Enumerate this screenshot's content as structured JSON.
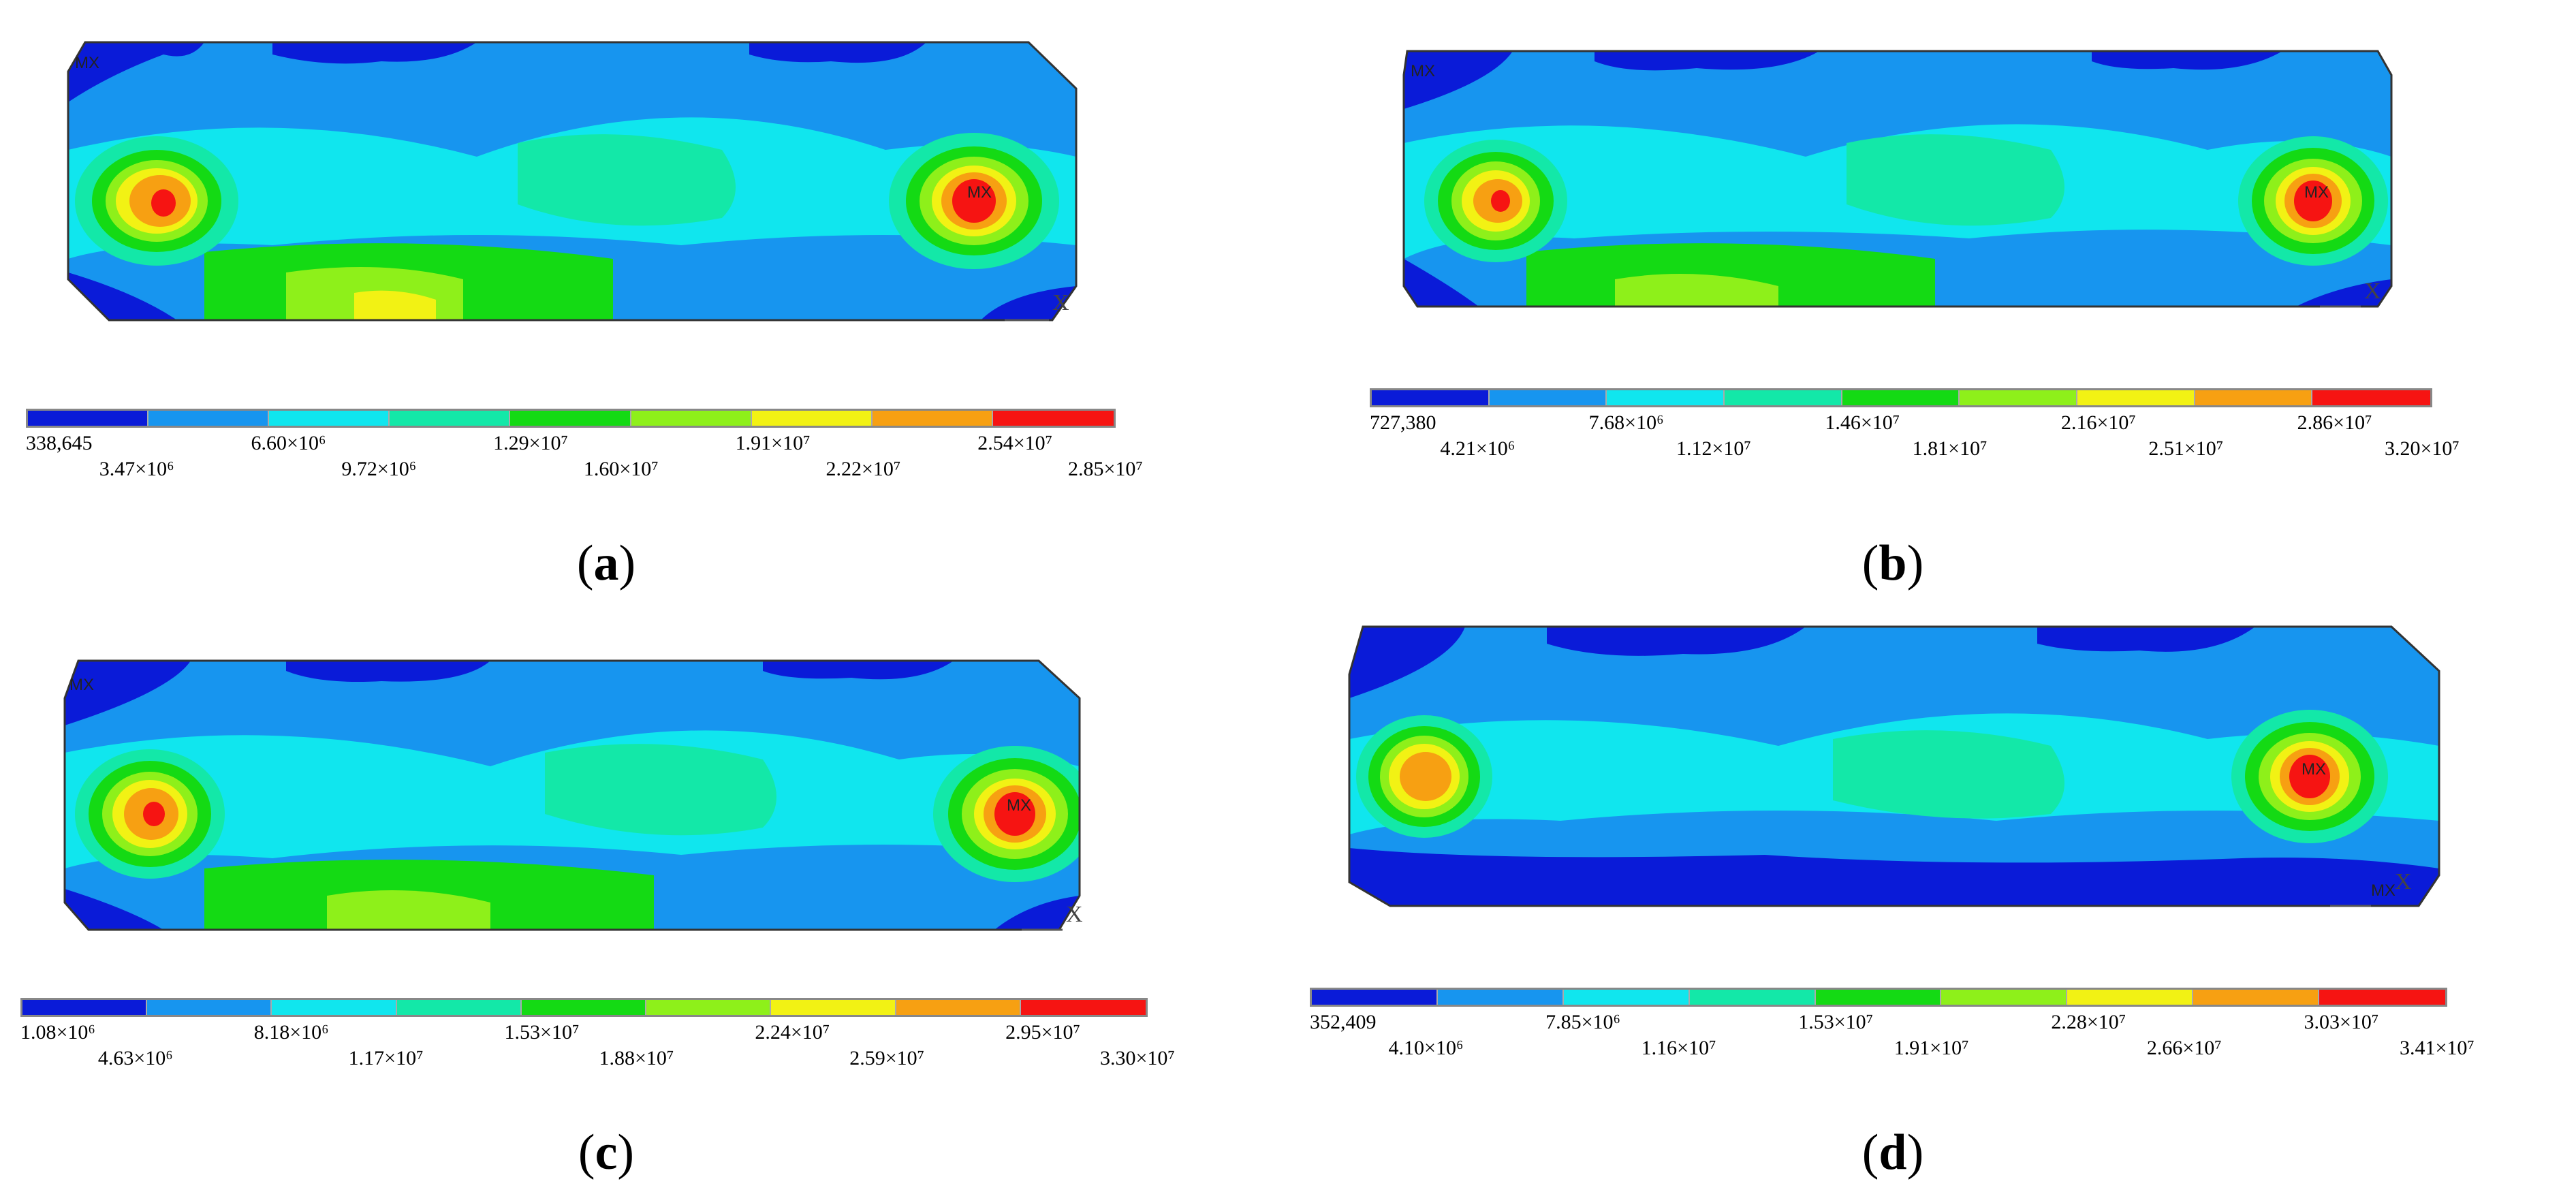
{
  "colors": [
    "#0a1bd8",
    "#1795ef",
    "#10e6ee",
    "#13e8a8",
    "#14da14",
    "#8ef01a",
    "#f2f214",
    "#f7a012",
    "#f61412"
  ],
  "panels": [
    {
      "id": "a",
      "label": "a",
      "legend_top": [
        "338,645",
        "6.60×10⁶",
        "1.29×10⁷",
        "1.91×10⁷",
        "2.54×10⁷"
      ],
      "legend_bottom": [
        "3.47×10⁶",
        "9.72×10⁶",
        "1.60×10⁷",
        "2.22×10⁷",
        "2.85×10⁷"
      ],
      "marker": "MX",
      "axis": "X"
    },
    {
      "id": "b",
      "label": "b",
      "legend_top": [
        "727,380",
        "7.68×10⁶",
        "1.46×10⁷",
        "2.16×10⁷",
        "2.86×10⁷"
      ],
      "legend_bottom": [
        "4.21×10⁶",
        "1.12×10⁷",
        "1.81×10⁷",
        "2.51×10⁷",
        "3.20×10⁷"
      ],
      "marker": "MX",
      "axis": "X"
    },
    {
      "id": "c",
      "label": "c",
      "legend_top": [
        "1.08×10⁶",
        "8.18×10⁶",
        "1.53×10⁷",
        "2.24×10⁷",
        "2.95×10⁷"
      ],
      "legend_bottom": [
        "4.63×10⁶",
        "1.17×10⁷",
        "1.88×10⁷",
        "2.59×10⁷",
        "3.30×10⁷"
      ],
      "marker": "MX",
      "axis": "X"
    },
    {
      "id": "d",
      "label": "d",
      "legend_top": [
        "352,409",
        "7.85×10⁶",
        "1.53×10⁷",
        "2.28×10⁷",
        "3.03×10⁷"
      ],
      "legend_bottom": [
        "4.10×10⁶",
        "1.16×10⁷",
        "1.91×10⁷",
        "2.66×10⁷",
        "3.41×10⁷"
      ],
      "marker": "MX",
      "axis": "X"
    }
  ]
}
